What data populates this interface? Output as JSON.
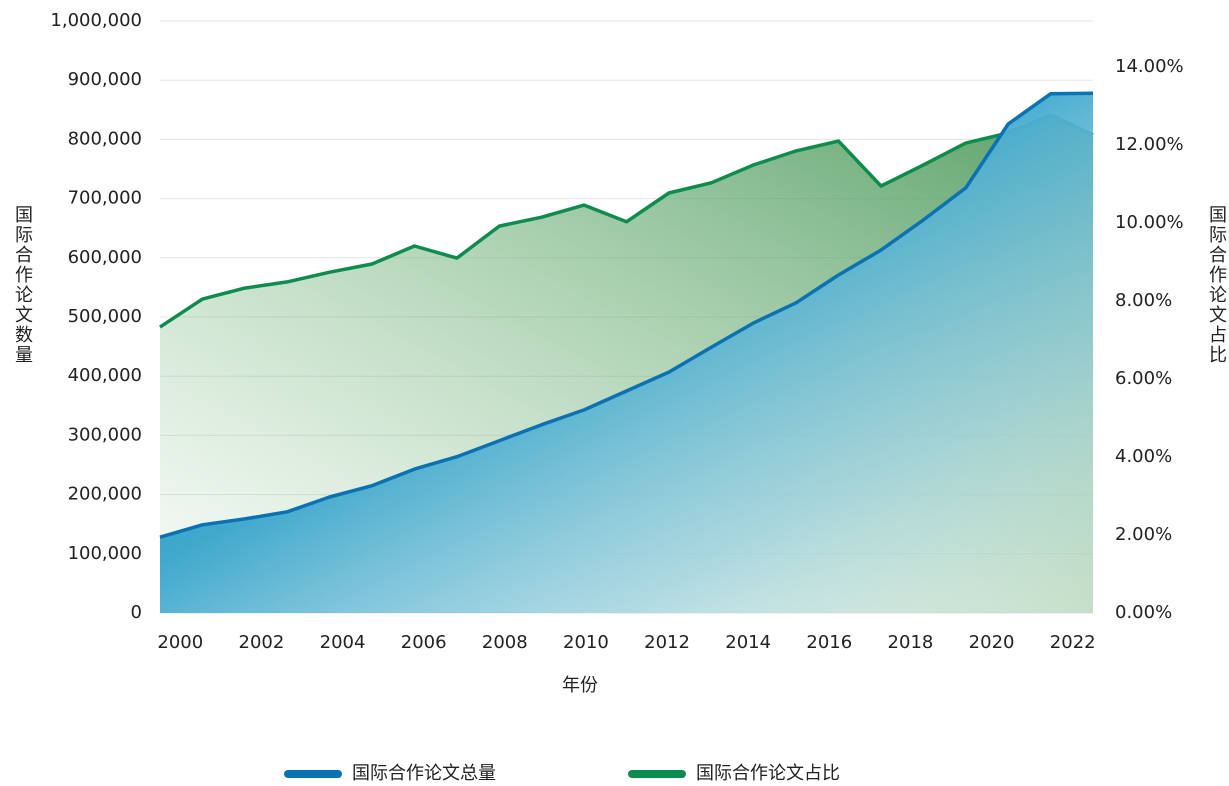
{
  "chart_data": {
    "type": "area",
    "categories": [
      "2000",
      null,
      "2002",
      null,
      "2004",
      null,
      "2006",
      null,
      "2008",
      null,
      "2010",
      null,
      "2012",
      null,
      "2014",
      null,
      "2016",
      null,
      "2018",
      null,
      "2020",
      null,
      "2022"
    ],
    "x_label": "年份",
    "y_label": "国际合作论文数量",
    "y2_label": "国际合作论文占比",
    "series": [
      {
        "name": "国际合作论文总量",
        "color": "#0a72b3",
        "axis": "y",
        "values": [
          128000,
          149000,
          159000,
          171000,
          196000,
          215000,
          243000,
          264000,
          291000,
          318000,
          343000,
          375000,
          407000,
          449000,
          490000,
          524000,
          571000,
          613000,
          664000,
          718000,
          826000,
          877000,
          878000
        ]
      },
      {
        "name": "国际合作论文占比",
        "color": "#0e8c4e",
        "axis": "y2",
        "values": [
          7.33,
          8.05,
          8.33,
          8.49,
          8.74,
          8.95,
          9.41,
          9.1,
          9.92,
          10.15,
          10.46,
          10.03,
          10.77,
          11.03,
          11.49,
          11.85,
          12.1,
          10.95,
          11.49,
          12.05,
          12.31,
          12.77,
          12.26
        ]
      }
    ],
    "ylim": [
      0,
      1000000
    ],
    "yticks": [
      0,
      {
        "value": 100000,
        "label": "100,000"
      },
      {
        "value": 200000,
        "label": "200,000"
      },
      {
        "value": 300000,
        "label": "300,000"
      },
      {
        "value": 400000,
        "label": "400,000"
      },
      {
        "value": 500000,
        "label": "500,000"
      },
      {
        "value": 600000,
        "label": "600,000"
      },
      {
        "value": 700000,
        "label": "700,000"
      },
      {
        "value": 800000,
        "label": "800,000"
      },
      {
        "value": 900000,
        "label": "900,000"
      },
      {
        "value": 1000000,
        "label": "1,000,000"
      }
    ],
    "y2lim": [
      0,
      15.18
    ],
    "y2ticks": [
      {
        "value": 0,
        "label": "0.00%"
      },
      {
        "value": 2,
        "label": "2.00%"
      },
      {
        "value": 4,
        "label": "4.00%"
      },
      {
        "value": 6,
        "label": "6.00%"
      },
      {
        "value": 8,
        "label": "8.00%"
      },
      {
        "value": 10,
        "label": "10.00%"
      },
      {
        "value": 12,
        "label": "12.00%"
      },
      {
        "value": 14,
        "label": "14.00%"
      }
    ],
    "grid": true,
    "legend": "bottom"
  }
}
